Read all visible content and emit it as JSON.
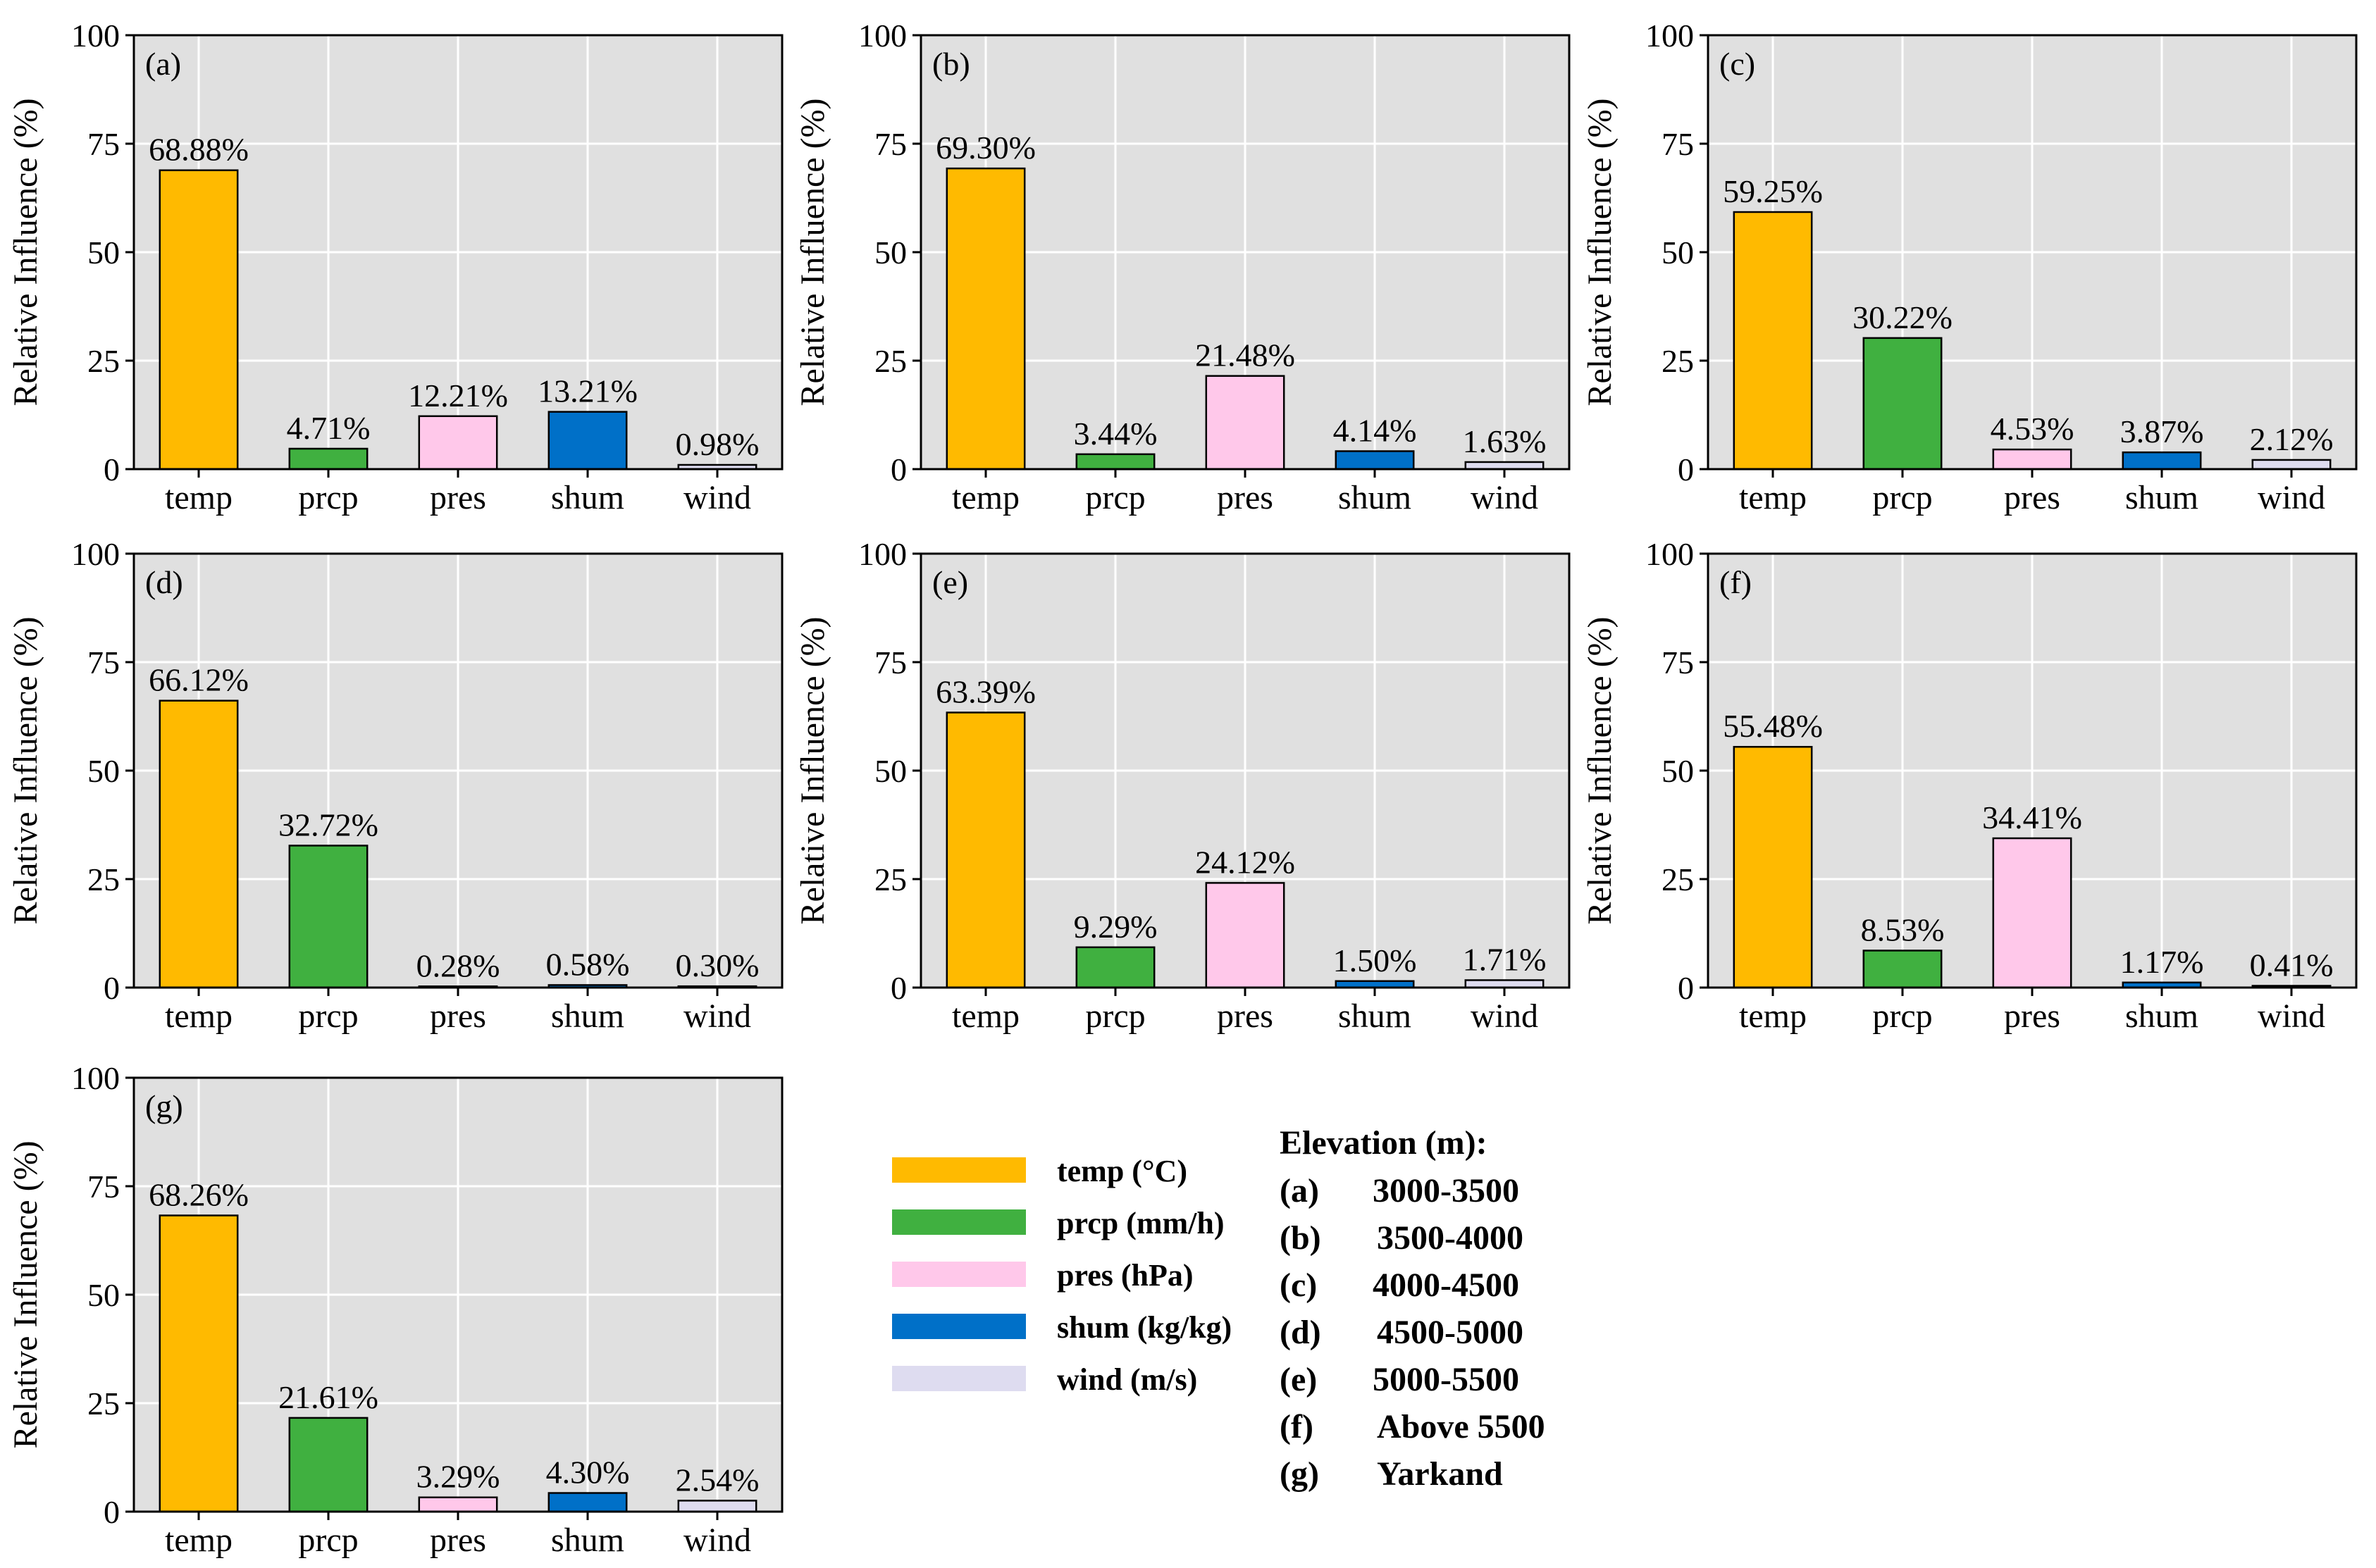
{
  "figure": {
    "categories": [
      "temp",
      "prcp",
      "pres",
      "shum",
      "wind"
    ],
    "colors": {
      "temp": "#FFBA00",
      "prcp": "#40B040",
      "pres": "#FFC8EA",
      "shum": "#0070C8",
      "wind": "#DEDCF0",
      "panel_bg": "#E0E0E0",
      "grid": "#FFFFFF",
      "bar_edge": "#000000"
    }
  },
  "chart_data": [
    {
      "panel": "(a)",
      "type": "bar",
      "ylabel": "Relative Influence (%)",
      "ylim": [
        0,
        100
      ],
      "yticks": [
        0,
        25,
        50,
        75,
        100
      ],
      "categories": [
        "temp",
        "prcp",
        "pres",
        "shum",
        "wind"
      ],
      "values": [
        68.88,
        4.71,
        12.21,
        13.21,
        0.98
      ],
      "labels": [
        "68.88%",
        "4.71%",
        "12.21%",
        "13.21%",
        "0.98%"
      ]
    },
    {
      "panel": "(b)",
      "type": "bar",
      "ylabel": "Relative Influence (%)",
      "ylim": [
        0,
        100
      ],
      "yticks": [
        0,
        25,
        50,
        75,
        100
      ],
      "categories": [
        "temp",
        "prcp",
        "pres",
        "shum",
        "wind"
      ],
      "values": [
        69.3,
        3.44,
        21.48,
        4.14,
        1.63
      ],
      "labels": [
        "69.30%",
        "3.44%",
        "21.48%",
        "4.14%",
        "1.63%"
      ]
    },
    {
      "panel": "(c)",
      "type": "bar",
      "ylabel": "Relative Influence (%)",
      "ylim": [
        0,
        100
      ],
      "yticks": [
        0,
        25,
        50,
        75,
        100
      ],
      "categories": [
        "temp",
        "prcp",
        "pres",
        "shum",
        "wind"
      ],
      "values": [
        59.25,
        30.22,
        4.53,
        3.87,
        2.12
      ],
      "labels": [
        "59.25%",
        "30.22%",
        "4.53%",
        "3.87%",
        "2.12%"
      ]
    },
    {
      "panel": "(d)",
      "type": "bar",
      "ylabel": "Relative Influence (%)",
      "ylim": [
        0,
        100
      ],
      "yticks": [
        0,
        25,
        50,
        75,
        100
      ],
      "categories": [
        "temp",
        "prcp",
        "pres",
        "shum",
        "wind"
      ],
      "values": [
        66.12,
        32.72,
        0.28,
        0.58,
        0.3
      ],
      "labels": [
        "66.12%",
        "32.72%",
        "0.28%",
        "0.58%",
        "0.30%"
      ]
    },
    {
      "panel": "(e)",
      "type": "bar",
      "ylabel": "Relative Influence (%)",
      "ylim": [
        0,
        100
      ],
      "yticks": [
        0,
        25,
        50,
        75,
        100
      ],
      "categories": [
        "temp",
        "prcp",
        "pres",
        "shum",
        "wind"
      ],
      "values": [
        63.39,
        9.29,
        24.12,
        1.5,
        1.71
      ],
      "labels": [
        "63.39%",
        "9.29%",
        "24.12%",
        "1.50%",
        "1.71%"
      ]
    },
    {
      "panel": "(f)",
      "type": "bar",
      "ylabel": "Relative Influence (%)",
      "ylim": [
        0,
        100
      ],
      "yticks": [
        0,
        25,
        50,
        75,
        100
      ],
      "categories": [
        "temp",
        "prcp",
        "pres",
        "shum",
        "wind"
      ],
      "values": [
        55.48,
        8.53,
        34.41,
        1.17,
        0.41
      ],
      "labels": [
        "55.48%",
        "8.53%",
        "34.41%",
        "1.17%",
        "0.41%"
      ]
    },
    {
      "panel": "(g)",
      "type": "bar",
      "ylabel": "Relative Influence (%)",
      "ylim": [
        0,
        100
      ],
      "yticks": [
        0,
        25,
        50,
        75,
        100
      ],
      "categories": [
        "temp",
        "prcp",
        "pres",
        "shum",
        "wind"
      ],
      "values": [
        68.26,
        21.61,
        3.29,
        4.3,
        2.54
      ],
      "labels": [
        "68.26%",
        "21.61%",
        "3.29%",
        "4.30%",
        "2.54%"
      ]
    }
  ],
  "legend": {
    "items": [
      {
        "key": "temp",
        "label": "temp (°C)"
      },
      {
        "key": "prcp",
        "label": "prcp (mm/h)"
      },
      {
        "key": "pres",
        "label": "pres (hPa)"
      },
      {
        "key": "shum",
        "label": "shum (kg/kg)"
      },
      {
        "key": "wind",
        "label": "wind (m/s)"
      }
    ]
  },
  "elevation": {
    "title": "Elevation (m):",
    "rows": [
      {
        "panel": "(a)",
        "range": "3000-3500"
      },
      {
        "panel": "(b)",
        "range": "3500-4000"
      },
      {
        "panel": "(c)",
        "range": "4000-4500"
      },
      {
        "panel": "(d)",
        "range": "4500-5000"
      },
      {
        "panel": "(e)",
        "range": "5000-5500"
      },
      {
        "panel": "(f)",
        "range": "Above 5500"
      },
      {
        "panel": "(g)",
        "range": "Yarkand"
      }
    ]
  }
}
